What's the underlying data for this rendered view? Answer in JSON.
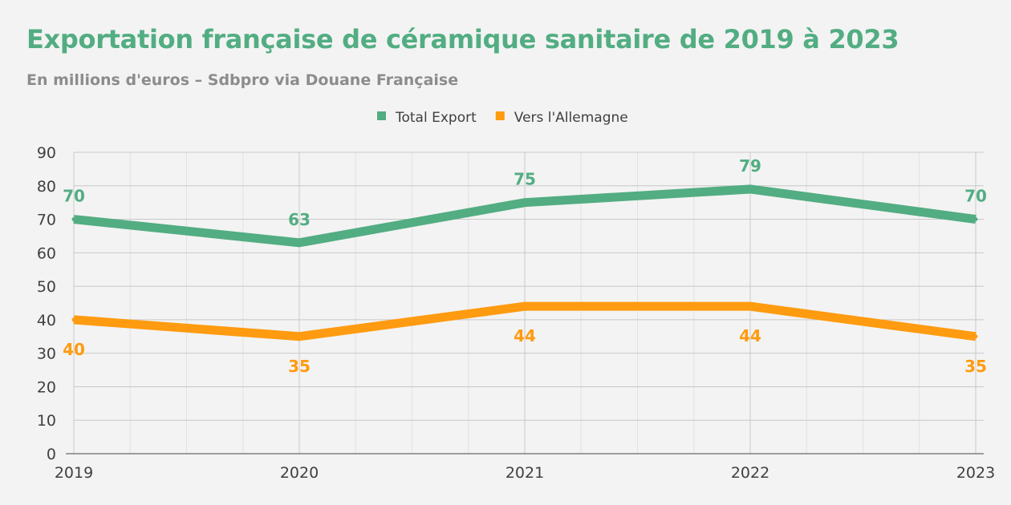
{
  "chart_data": {
    "type": "line",
    "title": "Exportation française de céramique sanitaire de 2019 à 2023",
    "subtitle": "En millions d'euros – Sdbpro via Douane Française",
    "categories": [
      "2019",
      "2020",
      "2021",
      "2022",
      "2023"
    ],
    "series": [
      {
        "name": "Total Export",
        "values": [
          70,
          63,
          75,
          79,
          70
        ],
        "color": "#52ad82",
        "label_position": "above"
      },
      {
        "name": "Vers l'Allemagne",
        "values": [
          40,
          35,
          44,
          44,
          35
        ],
        "color": "#ff9b10",
        "label_position": "below"
      }
    ],
    "ylim": [
      0,
      90
    ],
    "y_ticks": [
      "0",
      "10",
      "20",
      "30",
      "40",
      "50",
      "60",
      "70",
      "80",
      "90"
    ],
    "grid": true,
    "legend_position": "top-center",
    "title_color": "#52ad82"
  }
}
